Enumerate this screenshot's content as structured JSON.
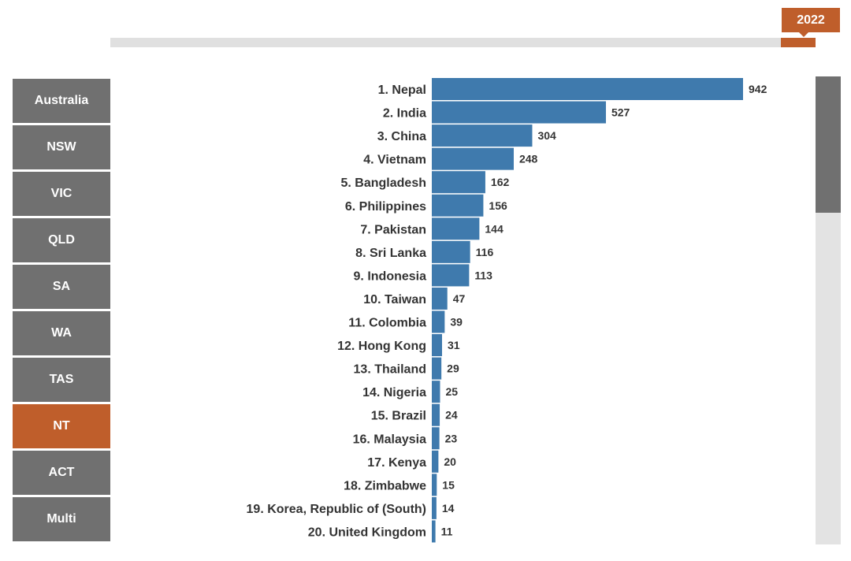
{
  "year_slider": {
    "selected_year": "2022"
  },
  "regions": [
    {
      "label": "Australia",
      "active": false
    },
    {
      "label": "NSW",
      "active": false
    },
    {
      "label": "VIC",
      "active": false
    },
    {
      "label": "QLD",
      "active": false
    },
    {
      "label": "SA",
      "active": false
    },
    {
      "label": "WA",
      "active": false
    },
    {
      "label": "TAS",
      "active": false
    },
    {
      "label": "NT",
      "active": true
    },
    {
      "label": "ACT",
      "active": false
    },
    {
      "label": "Multi",
      "active": false
    }
  ],
  "colors": {
    "bar": "#3f7aad",
    "accent": "#bf5e2b",
    "button": "#707070"
  },
  "chart_data": {
    "type": "bar",
    "orientation": "horizontal",
    "categories": [
      "1. Nepal",
      "2. India",
      "3. China",
      "4. Vietnam",
      "5. Bangladesh",
      "6. Philippines",
      "7. Pakistan",
      "8. Sri Lanka",
      "9. Indonesia",
      "10. Taiwan",
      "11. Colombia",
      "12. Hong Kong",
      "13. Thailand",
      "14. Nigeria",
      "15. Brazil",
      "16. Malaysia",
      "17. Kenya",
      "18. Zimbabwe",
      "19. Korea, Republic of (South)",
      "20. United Kingdom"
    ],
    "values": [
      942,
      527,
      304,
      248,
      162,
      156,
      144,
      116,
      113,
      47,
      39,
      31,
      29,
      25,
      24,
      23,
      20,
      15,
      14,
      11
    ],
    "xlim": [
      0,
      942
    ],
    "grid": false
  }
}
